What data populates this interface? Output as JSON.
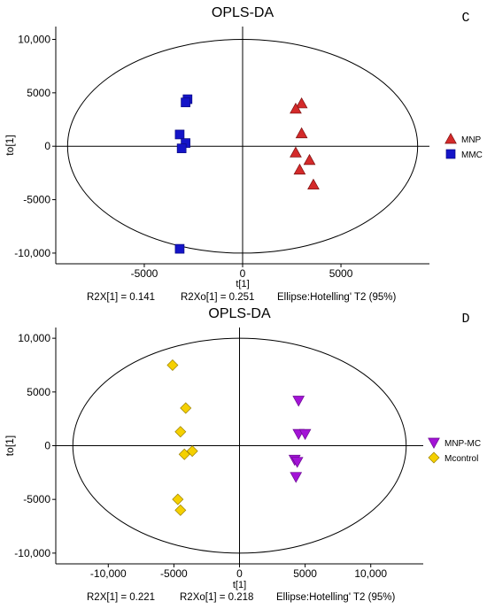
{
  "chart_data": [
    {
      "panel": "C",
      "type": "scatter",
      "title": "OPLS-DA",
      "xlabel": "t[1]",
      "ylabel": "to[1]",
      "xlim": [
        -9500,
        9500
      ],
      "ylim": [
        -11000,
        11200
      ],
      "xticks": [
        {
          "v": -5000,
          "label": "-5000"
        },
        {
          "v": 0,
          "label": "0"
        },
        {
          "v": 5000,
          "label": "5000"
        }
      ],
      "yticks": [
        {
          "v": 10000,
          "label": "10,000"
        },
        {
          "v": 5000,
          "label": "5000"
        },
        {
          "v": 0,
          "label": "0"
        },
        {
          "v": -5000,
          "label": "-5000"
        },
        {
          "v": -10000,
          "label": "-10,000"
        }
      ],
      "ellipse": {
        "rx": 8900,
        "ry": 10000
      },
      "stats": [
        {
          "label": "R2X[1]",
          "value": "0.141"
        },
        {
          "label": "R2Xo[1]",
          "value": "0.251"
        },
        {
          "label": "Ellipse:",
          "value": "Hotelling' T2 (95%)"
        }
      ],
      "legend_position": "right",
      "series": [
        {
          "name": "MNP",
          "marker": "triangle-up",
          "color": "#d42a2a",
          "points": [
            [
              3000,
              4000
            ],
            [
              2700,
              3500
            ],
            [
              3000,
              1200
            ],
            [
              2700,
              -600
            ],
            [
              3400,
              -1300
            ],
            [
              2900,
              -2200
            ],
            [
              3600,
              -3600
            ]
          ]
        },
        {
          "name": "MMC",
          "marker": "square",
          "color": "#1414c8",
          "points": [
            [
              -2800,
              4400
            ],
            [
              -2900,
              4100
            ],
            [
              -3200,
              1100
            ],
            [
              -2900,
              300
            ],
            [
              -3100,
              -200
            ],
            [
              -3200,
              -9600
            ]
          ]
        }
      ]
    },
    {
      "panel": "D",
      "type": "scatter",
      "title": "OPLS-DA",
      "xlabel": "t[1]",
      "ylabel": "to[1]",
      "xlim": [
        -14000,
        14000
      ],
      "ylim": [
        -11000,
        11000
      ],
      "xticks": [
        {
          "v": -10000,
          "label": "-10,000"
        },
        {
          "v": -5000,
          "label": "-5000"
        },
        {
          "v": 0,
          "label": "0"
        },
        {
          "v": 5000,
          "label": "5000"
        },
        {
          "v": 10000,
          "label": "10,000"
        }
      ],
      "yticks": [
        {
          "v": 10000,
          "label": "10,000"
        },
        {
          "v": 5000,
          "label": "5000"
        },
        {
          "v": 0,
          "label": "0"
        },
        {
          "v": -5000,
          "label": "-5000"
        },
        {
          "v": -10000,
          "label": "-10,000"
        }
      ],
      "ellipse": {
        "rx": 12700,
        "ry": 10000
      },
      "stats": [
        {
          "label": "R2X[1]",
          "value": "0.221"
        },
        {
          "label": "R2Xo[1]",
          "value": "0.218"
        },
        {
          "label": "Ellipse:",
          "value": "Hotelling' T2 (95%)"
        }
      ],
      "legend_position": "right",
      "series": [
        {
          "name": "MNP-MC",
          "marker": "triangle-down",
          "color": "#a313d6",
          "points": [
            [
              4500,
              4200
            ],
            [
              4500,
              1100
            ],
            [
              5000,
              1100
            ],
            [
              4200,
              -1300
            ],
            [
              4400,
              -1500
            ],
            [
              4300,
              -2900
            ]
          ]
        },
        {
          "name": "Mcontrol",
          "marker": "diamond",
          "color": "#f5d000",
          "points": [
            [
              -5100,
              7500
            ],
            [
              -4100,
              3500
            ],
            [
              -4500,
              1300
            ],
            [
              -3600,
              -500
            ],
            [
              -4200,
              -800
            ],
            [
              -4700,
              -5000
            ],
            [
              -4500,
              -6000
            ]
          ]
        }
      ]
    }
  ]
}
